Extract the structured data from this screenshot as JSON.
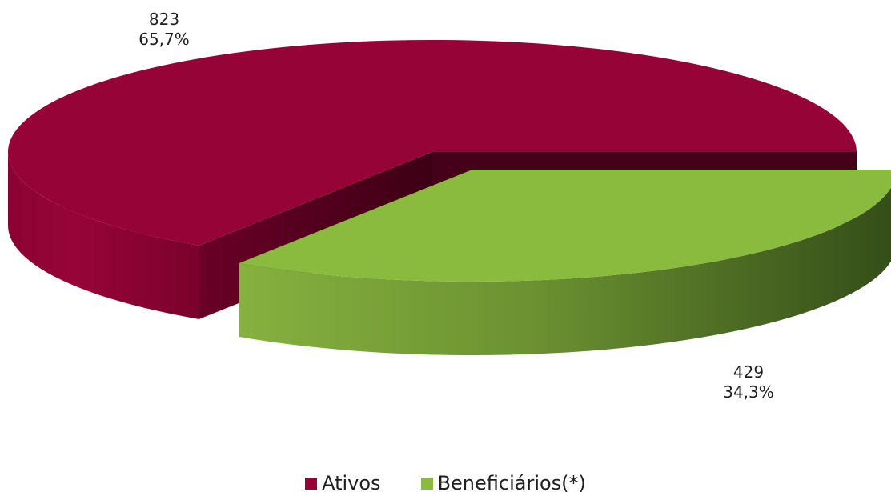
{
  "chart_data": {
    "type": "pie",
    "style": "3d-exploded",
    "categories": [
      "Ativos",
      "Beneficiários(*)"
    ],
    "values": [
      823,
      429
    ],
    "percent_labels": [
      "65,7%",
      "34,3%"
    ],
    "value_labels": [
      "823",
      "429"
    ],
    "colors": [
      "#960337",
      "#8bbb3e"
    ],
    "dark_colors": [
      "#5e0022",
      "#3b521b"
    ],
    "legend_placement": "bottom"
  }
}
